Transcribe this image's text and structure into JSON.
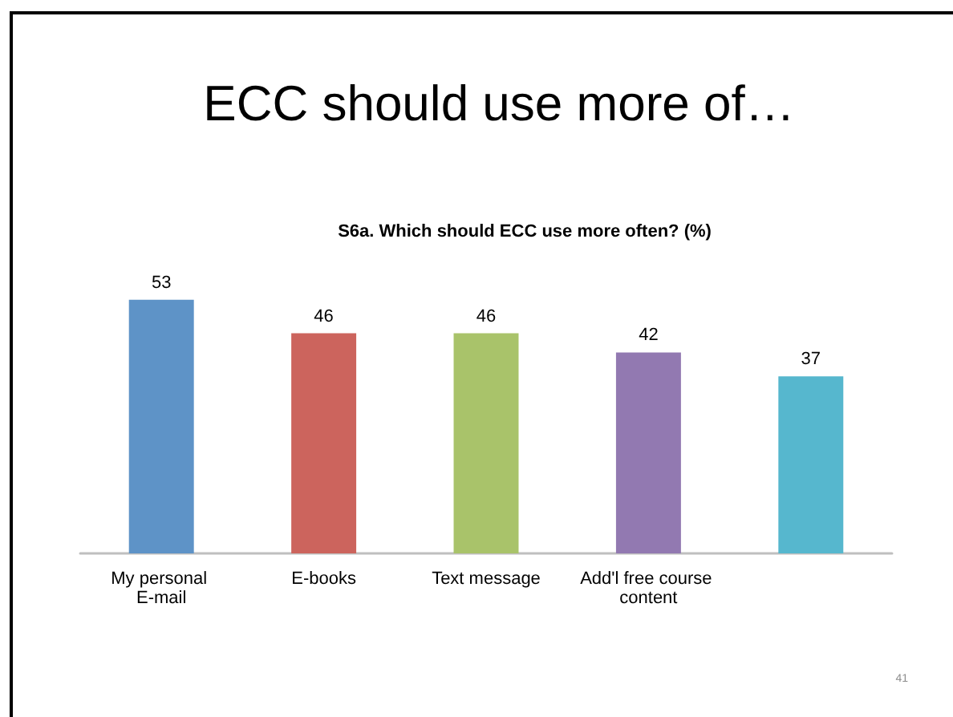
{
  "chart_data": {
    "type": "bar",
    "title": "ECC should use more of…",
    "subtitle": "S6a. Which should ECC use more often? (%)",
    "categories": [
      "My personal E-mail",
      "E-books",
      "Text message",
      "Add'l free course content",
      null
    ],
    "values": [
      53,
      46,
      46,
      42,
      37
    ],
    "colors": [
      "#5e93c7",
      "#cc645d",
      "#a9c36a",
      "#9279b1",
      "#56b7ce"
    ],
    "data_labels": true,
    "annotations": [
      "41"
    ]
  }
}
